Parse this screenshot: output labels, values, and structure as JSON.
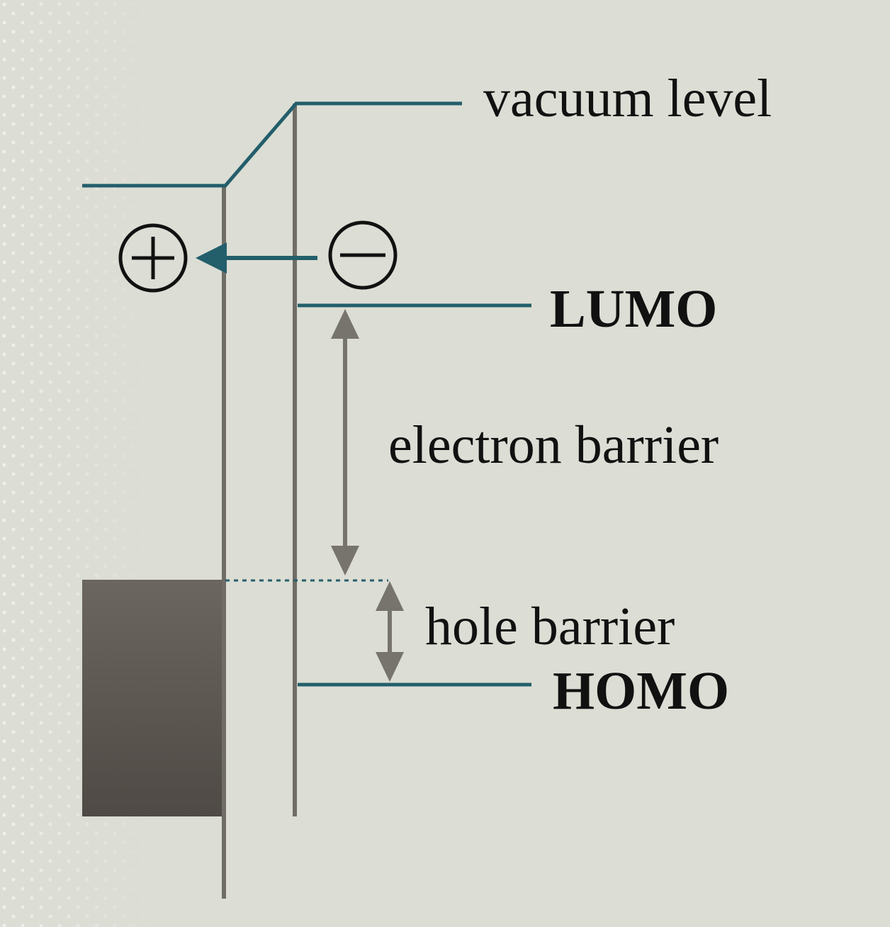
{
  "diagram": {
    "labels": {
      "vacuum_level": "vacuum level",
      "lumo": "LUMO",
      "electron_barrier": "electron barrier",
      "hole_barrier": "hole barrier",
      "homo": "HOMO"
    },
    "symbols": {
      "positive_charge": "+",
      "negative_charge": "−"
    },
    "colors": {
      "background": "#dcddd4",
      "level_line": "#235e6b",
      "interface_line": "#6f6d66",
      "barrier_arrow": "#76746d",
      "metal_block": "#5a5550",
      "text": "#111111"
    }
  }
}
